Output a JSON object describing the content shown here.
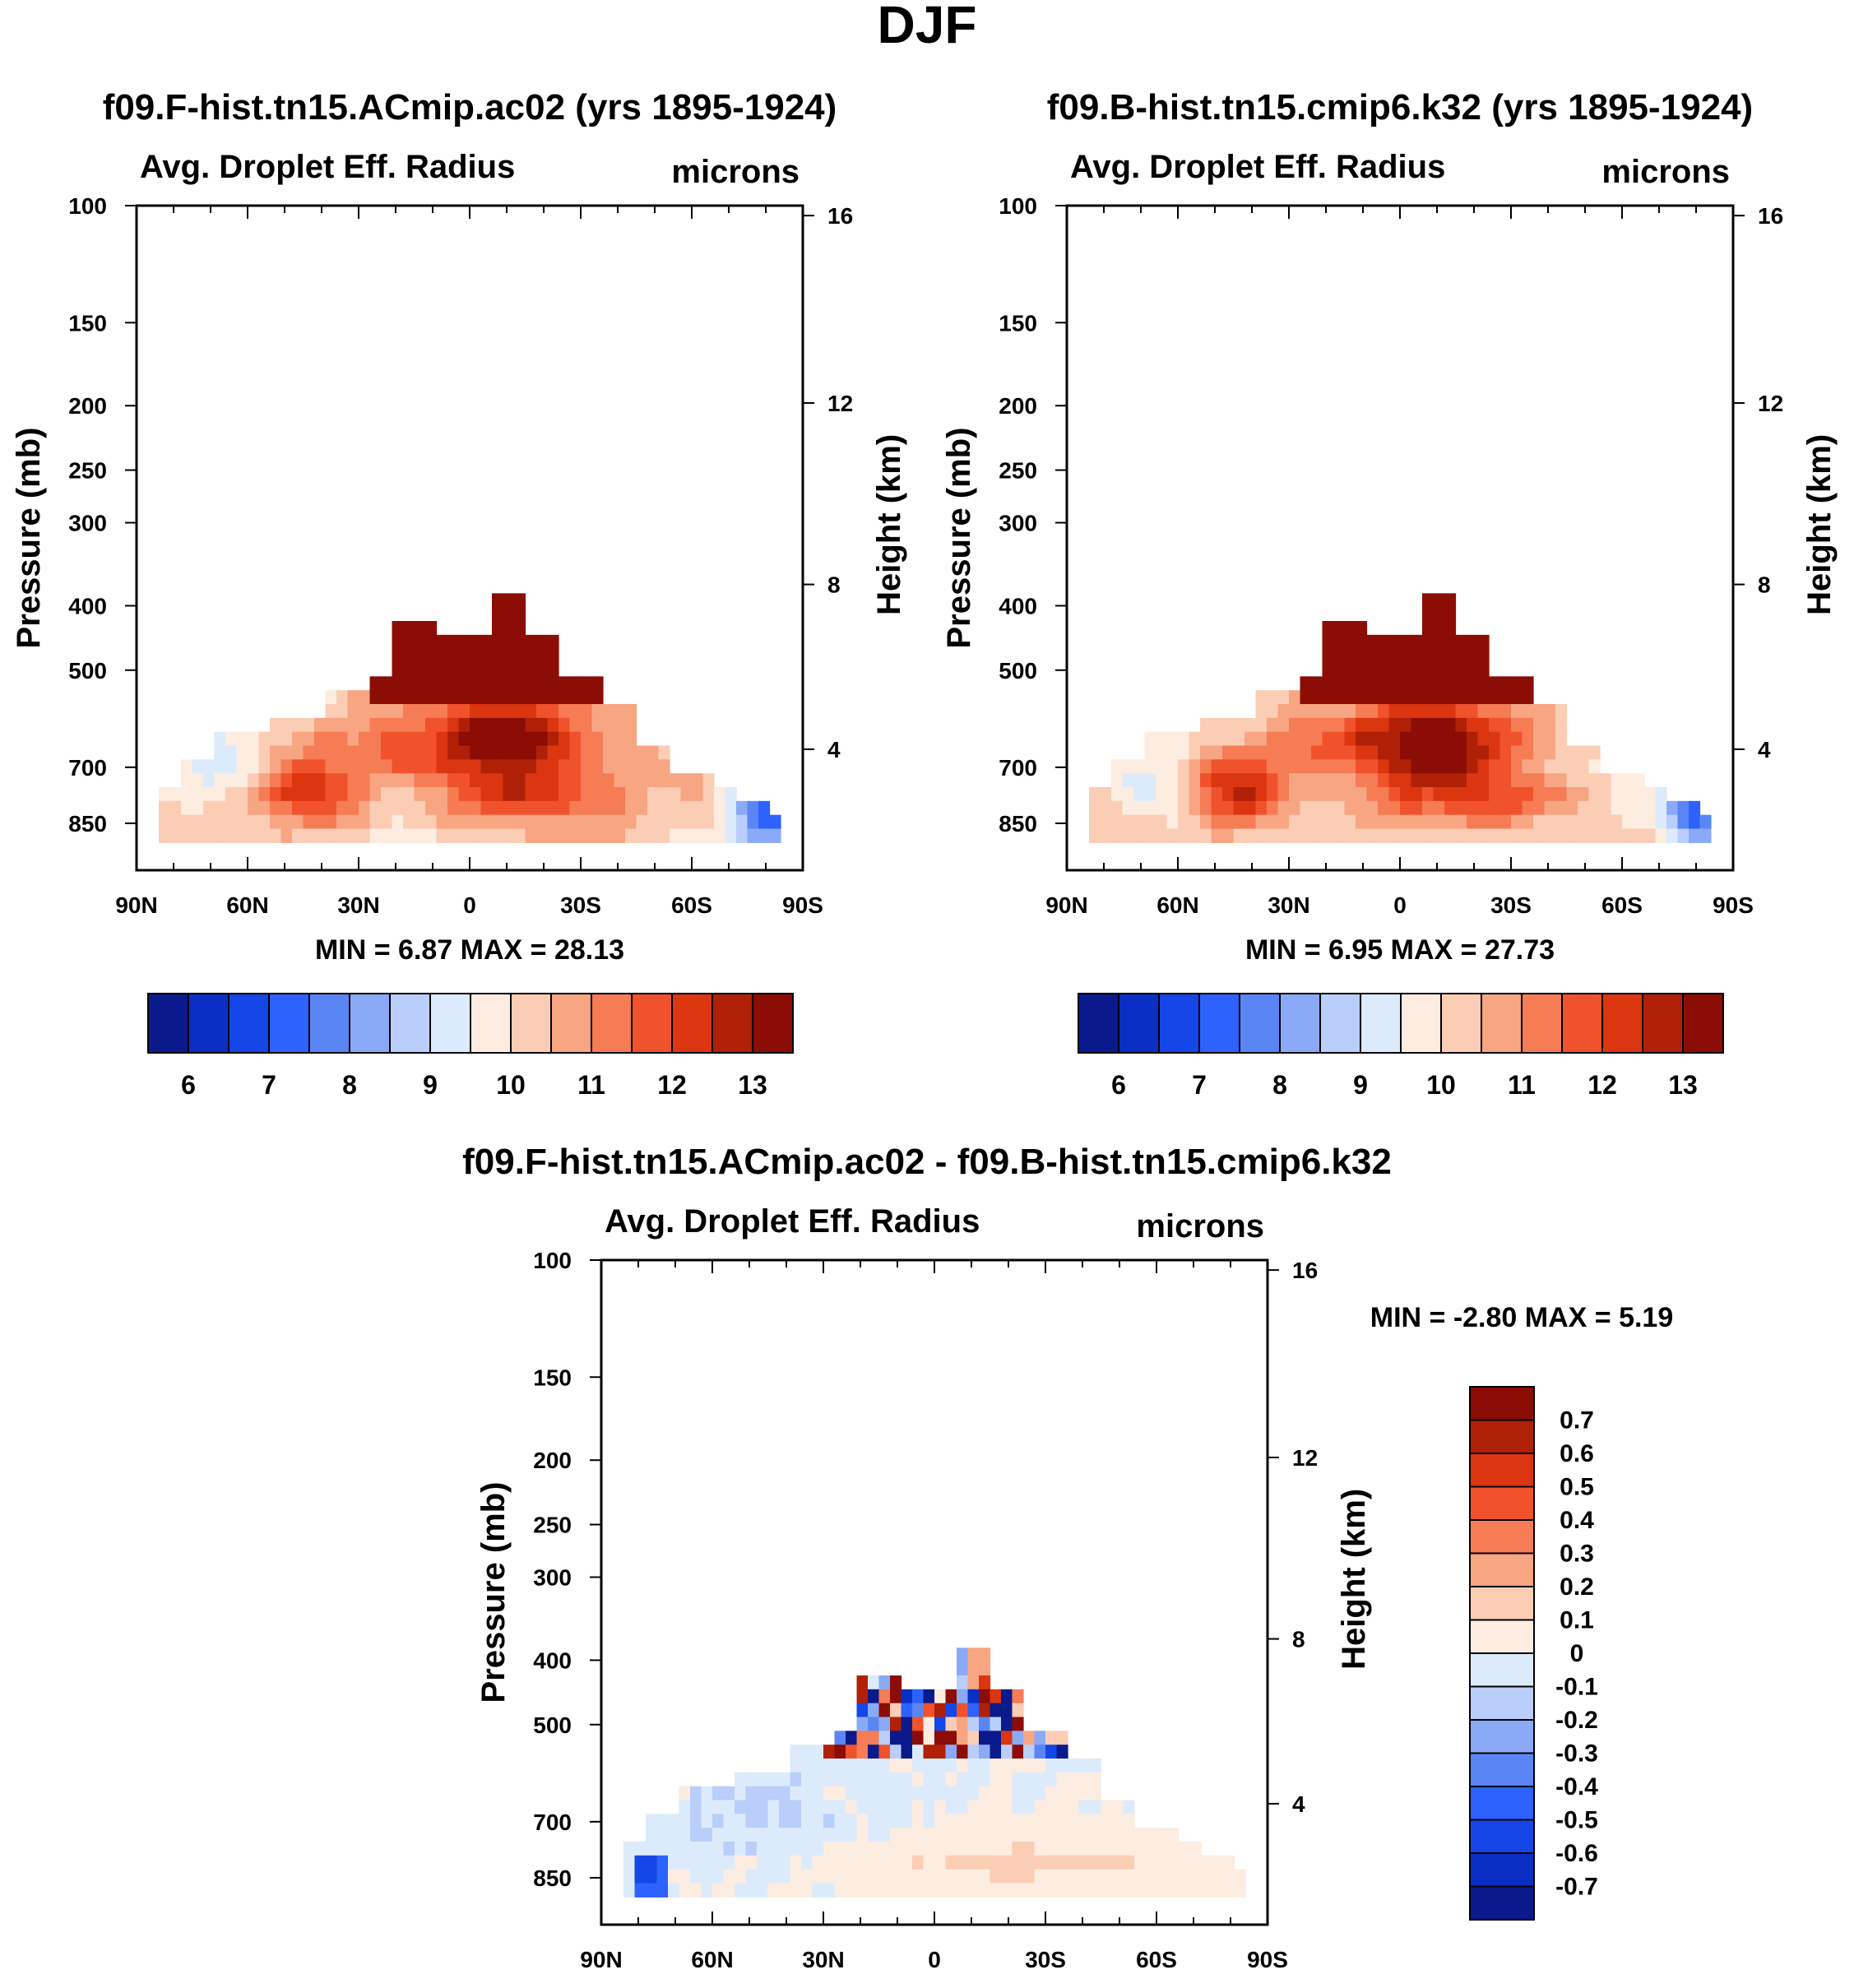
{
  "chart_data": {
    "type": "heatmap",
    "title": "DJF",
    "colors": {
      "abs_palette": [
        "#0a1a8c",
        "#0a2fc4",
        "#1446e8",
        "#2d62ff",
        "#5a86f5",
        "#8aaaf7",
        "#b9cefb",
        "#dcebfb",
        "#fdece0",
        "#fbcdb4",
        "#f8a582",
        "#f57c55",
        "#f0522c",
        "#db3610",
        "#b02007",
        "#8b0d05"
      ],
      "diff_palette": [
        "#0a1a8c",
        "#0a2fc4",
        "#1446e8",
        "#2d62ff",
        "#5a86f5",
        "#8aaaf7",
        "#b9cefb",
        "#dcebfb",
        "#fdece0",
        "#fbcdb4",
        "#f8a582",
        "#f57c55",
        "#f0522c",
        "#db3610",
        "#b02007",
        "#8b0d05"
      ]
    },
    "panels": [
      {
        "id": "a",
        "title": "f09.F-hist.tn15.ACmip.ac02 (yrs 1895-1924)",
        "left_label": "Avg. Droplet Eff. Radius",
        "right_label": "microns",
        "ylabel": "Pressure (mb)",
        "y2label": "Height (km)",
        "pressure_ticks": [
          "100",
          "150",
          "200",
          "250",
          "300",
          "400",
          "500",
          "700",
          "850"
        ],
        "height_ticks": [
          "16",
          "12",
          "8",
          "4"
        ],
        "xticks": [
          "90N",
          "60N",
          "30N",
          "0",
          "30S",
          "60S",
          "90S"
        ],
        "stats": "MIN =   6.87  MAX =  28.13",
        "colorbar_labels": [
          "6",
          "7",
          "8",
          "9",
          "10",
          "11",
          "12",
          "13"
        ]
      },
      {
        "id": "b",
        "title": "f09.B-hist.tn15.cmip6.k32 (yrs 1895-1924)",
        "left_label": "Avg. Droplet Eff. Radius",
        "right_label": "microns",
        "ylabel": "Pressure (mb)",
        "y2label": "Height (km)",
        "pressure_ticks": [
          "100",
          "150",
          "200",
          "250",
          "300",
          "400",
          "500",
          "700",
          "850"
        ],
        "height_ticks": [
          "16",
          "12",
          "8",
          "4"
        ],
        "xticks": [
          "90N",
          "60N",
          "30N",
          "0",
          "30S",
          "60S",
          "90S"
        ],
        "stats": "MIN =   6.95  MAX =  27.73",
        "colorbar_labels": [
          "6",
          "7",
          "8",
          "9",
          "10",
          "11",
          "12",
          "13"
        ]
      },
      {
        "id": "c",
        "title": "f09.F-hist.tn15.ACmip.ac02 - f09.B-hist.tn15.cmip6.k32",
        "left_label": "Avg. Droplet Eff. Radius",
        "right_label": "microns",
        "ylabel": "Pressure (mb)",
        "y2label": "Height (km)",
        "pressure_ticks": [
          "100",
          "150",
          "200",
          "250",
          "300",
          "400",
          "500",
          "700",
          "850"
        ],
        "height_ticks": [
          "16",
          "12",
          "8",
          "4"
        ],
        "xticks": [
          "90N",
          "60N",
          "30N",
          "0",
          "30S",
          "60S",
          "90S"
        ],
        "stats": "MIN =  -2.80  MAX =    5.19",
        "colorbar_labels": [
          "0.7",
          "0.6",
          "0.5",
          "0.4",
          "0.3",
          "0.2",
          "0.1",
          "0",
          "-0.1",
          "-0.2",
          "-0.3",
          "-0.4",
          "-0.5",
          "-0.6",
          "-0.7"
        ]
      }
    ],
    "xlim": [
      90,
      -90
    ],
    "pressure_range_mb": [
      100,
      1000
    ],
    "abs_levels": [
      5.5,
      6,
      6.5,
      7,
      7.5,
      8,
      8.5,
      9,
      9.5,
      10,
      10.5,
      11,
      11.5,
      12,
      12.5,
      13,
      13.5
    ],
    "diff_levels": [
      -0.7,
      -0.6,
      -0.5,
      -0.4,
      -0.3,
      -0.2,
      -0.1,
      0,
      0.1,
      0.2,
      0.3,
      0.4,
      0.5,
      0.6,
      0.7
    ]
  }
}
